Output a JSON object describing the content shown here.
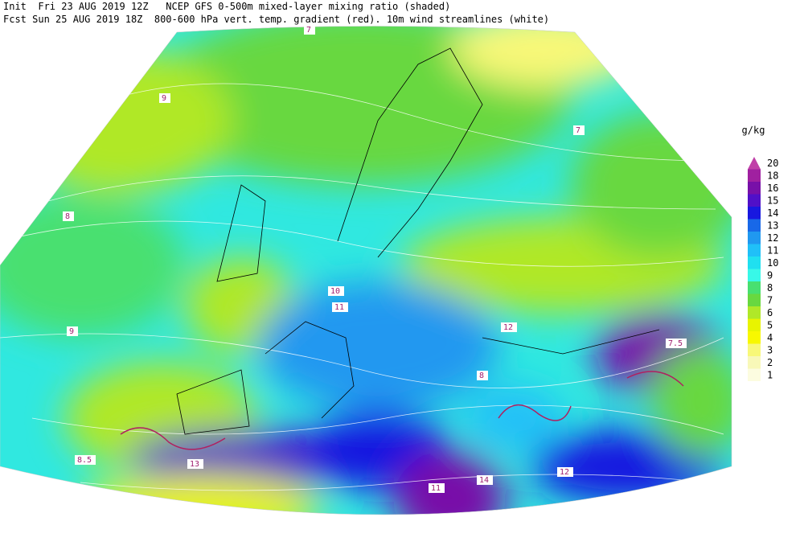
{
  "header": {
    "line1": "Init  Fri 23 AUG 2019 12Z   NCEP GFS 0-500m mixed-layer mixing ratio (shaded)",
    "line2": "Fcst Sun 25 AUG 2019 18Z  800-600 hPa vert. temp. gradient (red). 10m wind streamlines (white)"
  },
  "colorbar": {
    "unit": "g/kg",
    "levels": [
      {
        "value": 20,
        "color": "#c040a8"
      },
      {
        "value": 18,
        "color": "#a020a0"
      },
      {
        "value": 16,
        "color": "#7810a8"
      },
      {
        "value": 15,
        "color": "#5010c8"
      },
      {
        "value": 14,
        "color": "#1818e0"
      },
      {
        "value": 13,
        "color": "#1868e8"
      },
      {
        "value": 12,
        "color": "#2098f0"
      },
      {
        "value": 11,
        "color": "#20c0f8"
      },
      {
        "value": 10,
        "color": "#20e0f0"
      },
      {
        "value": 9,
        "color": "#38f8e8"
      },
      {
        "value": 8,
        "color": "#48e070"
      },
      {
        "value": 7,
        "color": "#68d840"
      },
      {
        "value": 6,
        "color": "#b0e828"
      },
      {
        "value": 5,
        "color": "#e8f400"
      },
      {
        "value": 4,
        "color": "#f8f800"
      },
      {
        "value": 3,
        "color": "#f8f878"
      },
      {
        "value": 2,
        "color": "#f8f8b8"
      },
      {
        "value": 1,
        "color": "#fcfce0"
      }
    ]
  },
  "map_labels": [
    "7",
    "9",
    "8",
    "7",
    "10",
    "11",
    "12",
    "13",
    "14",
    "9",
    "11",
    "12",
    "7.5",
    "8.5",
    "8"
  ]
}
